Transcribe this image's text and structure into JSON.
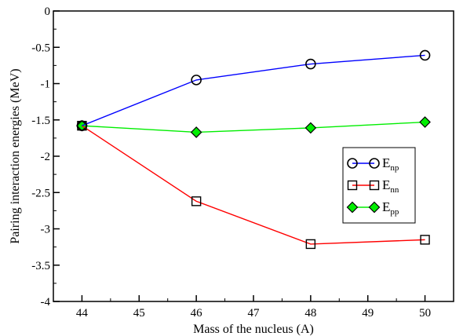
{
  "chart_data": {
    "type": "line",
    "xlabel": "Mass of the nucleus (A)",
    "ylabel": "Pairing interaction energies (MeV)",
    "xlim": [
      43.5,
      50.5
    ],
    "ylim": [
      -4,
      0
    ],
    "x_ticks": [
      44,
      45,
      46,
      47,
      48,
      49,
      50
    ],
    "y_ticks": [
      0,
      -0.5,
      -1,
      -1.5,
      -2,
      -2.5,
      -3,
      -3.5,
      -4
    ],
    "x_tick_labels": [
      "44",
      "45",
      "46",
      "47",
      "48",
      "49",
      "50"
    ],
    "y_tick_labels": [
      "0",
      "-0.5",
      "-1",
      "-1.5",
      "-2",
      "-2.5",
      "-3",
      "-3.5",
      "-4"
    ],
    "grid": false,
    "legend_position": "right-middle",
    "series": [
      {
        "name": "E",
        "subscript": "np",
        "marker": "circle",
        "color": "#0000ff",
        "x": [
          44,
          46,
          48,
          50
        ],
        "y": [
          -1.58,
          -0.95,
          -0.73,
          -0.61
        ]
      },
      {
        "name": "E",
        "subscript": "nn",
        "marker": "square",
        "color": "#ff0000",
        "x": [
          44,
          46,
          48,
          50
        ],
        "y": [
          -1.58,
          -2.62,
          -3.21,
          -3.15
        ]
      },
      {
        "name": "E",
        "subscript": "pp",
        "marker": "diamond",
        "color": "#00ee00",
        "x": [
          44,
          46,
          48,
          50
        ],
        "y": [
          -1.58,
          -1.67,
          -1.61,
          -1.53
        ]
      }
    ]
  }
}
